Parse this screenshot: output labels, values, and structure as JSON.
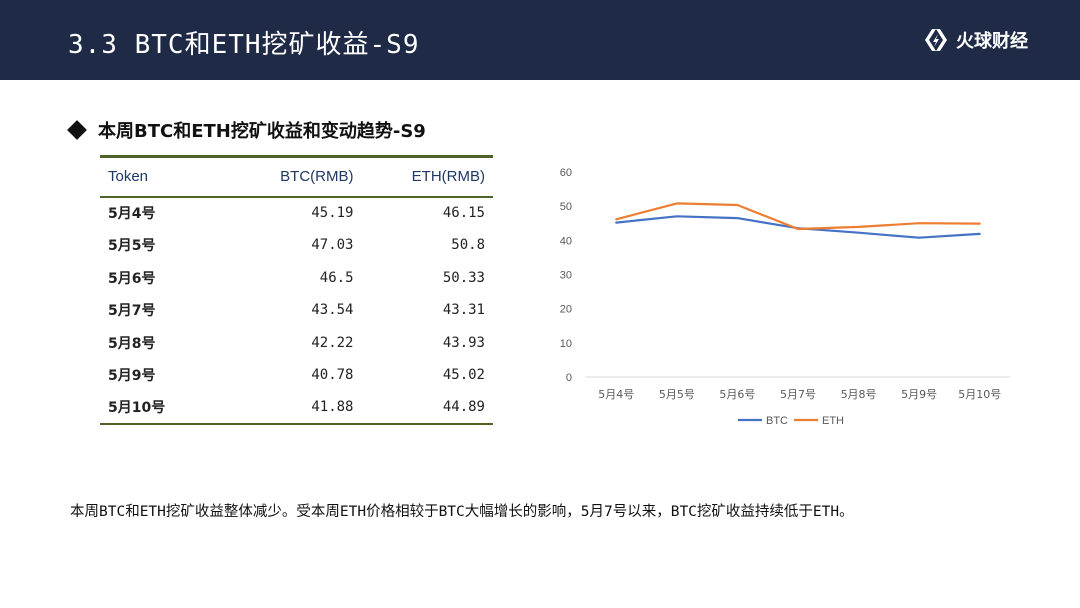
{
  "header": {
    "title": "3.3  BTC和ETH挖矿收益-S9",
    "logo_text": "火球财经",
    "background": "#1f2b46"
  },
  "section": {
    "heading": "本周BTC和ETH挖矿收益和变动趋势-S9"
  },
  "table": {
    "columns": [
      "Token",
      "BTC(RMB)",
      "ETH(RMB)"
    ],
    "rows": [
      {
        "date": "5月4号",
        "btc": "45.19",
        "eth": "46.15"
      },
      {
        "date": "5月5号",
        "btc": "47.03",
        "eth": "50.8"
      },
      {
        "date": "5月6号",
        "btc": "46.5",
        "eth": "50.33"
      },
      {
        "date": "5月7号",
        "btc": "43.54",
        "eth": "43.31"
      },
      {
        "date": "5月8号",
        "btc": "42.22",
        "eth": "43.93"
      },
      {
        "date": "5月9号",
        "btc": "40.78",
        "eth": "45.02"
      },
      {
        "date": "5月10号",
        "btc": "41.88",
        "eth": "44.89"
      }
    ]
  },
  "chart_data": {
    "type": "line",
    "title": "",
    "xlabel": "",
    "ylabel": "",
    "categories": [
      "5月4号",
      "5月5号",
      "5月6号",
      "5月7号",
      "5月8号",
      "5月9号",
      "5月10号"
    ],
    "series": [
      {
        "name": "BTC",
        "color": "#4472c4",
        "values": [
          45.19,
          47.03,
          46.5,
          43.54,
          42.22,
          40.78,
          41.88
        ]
      },
      {
        "name": "ETH",
        "color": "#ed7d31",
        "values": [
          46.15,
          50.8,
          50.33,
          43.31,
          43.93,
          45.02,
          44.89
        ]
      }
    ],
    "ylim": [
      0,
      60
    ],
    "yticks": [
      0,
      10,
      20,
      30,
      40,
      50,
      60
    ],
    "grid": false,
    "legend": "bottom"
  },
  "summary": "本周BTC和ETH挖矿收益整体减少。受本周ETH价格相较于BTC大幅增长的影响，5月7号以来，BTC挖矿收益持续低于ETH。"
}
